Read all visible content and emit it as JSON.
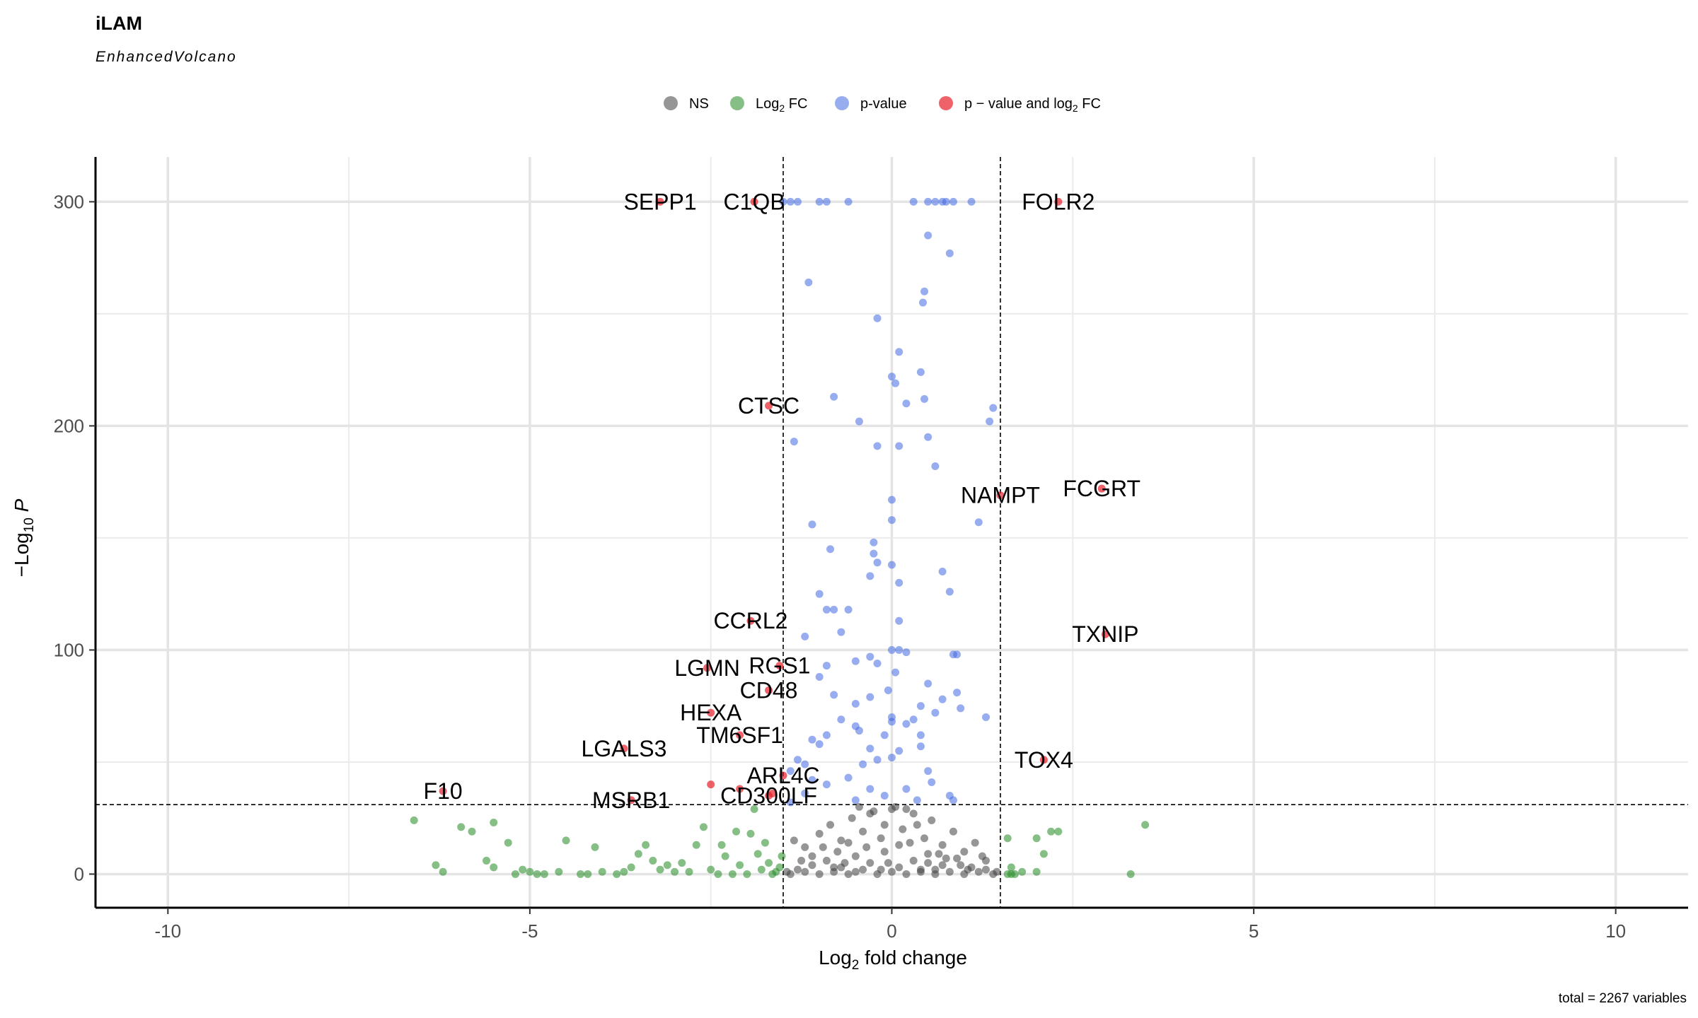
{
  "chart_data": {
    "type": "scatter",
    "title": "iLAM",
    "subtitle": "EnhancedVolcano",
    "xlabel": "Log2 fold change",
    "ylabel": "−Log10 P",
    "caption": "total = 2267 variables",
    "xlim": [
      -11,
      11
    ],
    "ylim": [
      -15,
      320
    ],
    "xticks": [
      -10,
      -5,
      0,
      5,
      10
    ],
    "yticks": [
      0,
      100,
      200,
      300
    ],
    "grid": true,
    "legend_position": "top",
    "thresholds": {
      "log2fc": 1.5,
      "neglog10p": 31
    },
    "colors": {
      "NS": "#404040",
      "Log2FC": "#228b22",
      "pvalue": "#4169e1",
      "both": "#e8202a"
    },
    "legend": [
      {
        "key": "NS",
        "label": "NS"
      },
      {
        "key": "Log2FC",
        "label": "Log",
        "sub": "2",
        "tail": " FC"
      },
      {
        "key": "pvalue",
        "label": "p-value"
      },
      {
        "key": "both",
        "label": "p − value and log",
        "sub": "2",
        "tail": " FC"
      }
    ],
    "labeled_genes": [
      {
        "gene": "SEPP1",
        "x": -3.2,
        "y": 300
      },
      {
        "gene": "C1QB",
        "x": -1.9,
        "y": 300
      },
      {
        "gene": "FOLR2",
        "x": 2.3,
        "y": 300
      },
      {
        "gene": "CTSC",
        "x": -1.7,
        "y": 209
      },
      {
        "gene": "NAMPT",
        "x": 1.5,
        "y": 169
      },
      {
        "gene": "FCGRT",
        "x": 2.9,
        "y": 172
      },
      {
        "gene": "CCRL2",
        "x": -1.95,
        "y": 113
      },
      {
        "gene": "TXNIP",
        "x": 2.95,
        "y": 107
      },
      {
        "gene": "LGMN",
        "x": -2.55,
        "y": 92
      },
      {
        "gene": "RGS1",
        "x": -1.55,
        "y": 93
      },
      {
        "gene": "CD48",
        "x": -1.7,
        "y": 82
      },
      {
        "gene": "HEXA",
        "x": -2.5,
        "y": 72
      },
      {
        "gene": "TM6SF1",
        "x": -2.1,
        "y": 62
      },
      {
        "gene": "LGALS3",
        "x": -3.7,
        "y": 56
      },
      {
        "gene": "TOX4",
        "x": 2.1,
        "y": 51
      },
      {
        "gene": "ARL4C",
        "x": -1.5,
        "y": 44
      },
      {
        "gene": "F10",
        "x": -6.2,
        "y": 37
      },
      {
        "gene": "CD300LF",
        "x": -1.7,
        "y": 35
      },
      {
        "gene": "MSRB1",
        "x": -3.6,
        "y": 33
      }
    ],
    "extra_red_points": [
      {
        "x": -2.5,
        "y": 40
      },
      {
        "x": -2.1,
        "y": 38
      },
      {
        "x": -1.65,
        "y": 36
      }
    ],
    "blue_points": [
      [
        -1.5,
        300
      ],
      [
        -1.4,
        300
      ],
      [
        -1.3,
        300
      ],
      [
        -1.0,
        300
      ],
      [
        -0.9,
        300
      ],
      [
        -0.6,
        300
      ],
      [
        0.3,
        300
      ],
      [
        0.5,
        300
      ],
      [
        0.6,
        300
      ],
      [
        0.7,
        300
      ],
      [
        0.75,
        300
      ],
      [
        0.85,
        300
      ],
      [
        1.1,
        300
      ],
      [
        0.5,
        285
      ],
      [
        0.8,
        277
      ],
      [
        -1.15,
        264
      ],
      [
        0.45,
        260
      ],
      [
        0.43,
        255
      ],
      [
        -0.2,
        248
      ],
      [
        0.1,
        233
      ],
      [
        0.0,
        222
      ],
      [
        0.05,
        219
      ],
      [
        0.4,
        224
      ],
      [
        -0.8,
        213
      ],
      [
        0.45,
        212
      ],
      [
        1.4,
        208
      ],
      [
        1.35,
        202
      ],
      [
        -0.45,
        202
      ],
      [
        0.2,
        210
      ],
      [
        -1.35,
        193
      ],
      [
        -0.2,
        191
      ],
      [
        0.1,
        191
      ],
      [
        0.5,
        195
      ],
      [
        0.6,
        182
      ],
      [
        0.0,
        167
      ],
      [
        0.0,
        158
      ],
      [
        1.2,
        157
      ],
      [
        -1.1,
        156
      ],
      [
        -0.25,
        148
      ],
      [
        -0.25,
        143
      ],
      [
        -0.2,
        139
      ],
      [
        -0.85,
        145
      ],
      [
        0.0,
        138
      ],
      [
        -0.3,
        133
      ],
      [
        0.1,
        130
      ],
      [
        0.7,
        135
      ],
      [
        0.8,
        126
      ],
      [
        -1.0,
        125
      ],
      [
        -0.9,
        118
      ],
      [
        -0.8,
        118
      ],
      [
        -0.6,
        118
      ],
      [
        0.1,
        113
      ],
      [
        -0.7,
        108
      ],
      [
        -1.2,
        106
      ],
      [
        0.9,
        98
      ],
      [
        0.85,
        98
      ],
      [
        0.0,
        100
      ],
      [
        0.1,
        100
      ],
      [
        0.2,
        99
      ],
      [
        -0.3,
        97
      ],
      [
        0.05,
        90
      ],
      [
        -1.0,
        88
      ],
      [
        -0.9,
        93
      ],
      [
        -0.5,
        95
      ],
      [
        -0.2,
        94
      ],
      [
        -0.05,
        82
      ],
      [
        0.5,
        85
      ],
      [
        0.9,
        81
      ],
      [
        0.95,
        74
      ],
      [
        0.7,
        78
      ],
      [
        0.6,
        72
      ],
      [
        0.4,
        75
      ],
      [
        0.3,
        69
      ],
      [
        0.0,
        70
      ],
      [
        1.3,
        70
      ],
      [
        -0.3,
        79
      ],
      [
        -0.5,
        76
      ],
      [
        -0.8,
        80
      ],
      [
        -0.7,
        69
      ],
      [
        -0.45,
        64
      ],
      [
        -0.1,
        62
      ],
      [
        0.0,
        68
      ],
      [
        0.2,
        67
      ],
      [
        0.4,
        62
      ],
      [
        -0.9,
        62
      ],
      [
        -1.1,
        60
      ],
      [
        -1.0,
        58
      ],
      [
        -0.5,
        66
      ],
      [
        -0.3,
        56
      ],
      [
        0.1,
        55
      ],
      [
        -0.4,
        49
      ],
      [
        -0.2,
        51
      ],
      [
        0.0,
        52
      ],
      [
        0.4,
        57
      ],
      [
        0.5,
        46
      ],
      [
        0.55,
        41
      ],
      [
        0.8,
        35
      ],
      [
        0.85,
        33
      ],
      [
        -1.3,
        51
      ],
      [
        -1.2,
        49
      ],
      [
        -1.4,
        46
      ],
      [
        -1.1,
        42
      ],
      [
        -0.9,
        40
      ],
      [
        -0.6,
        43
      ],
      [
        -0.3,
        38
      ],
      [
        -0.1,
        35
      ],
      [
        0.2,
        38
      ],
      [
        0.35,
        33
      ],
      [
        -0.5,
        33
      ],
      [
        -1.4,
        32
      ],
      [
        -1.2,
        36
      ]
    ],
    "green_points": [
      [
        -6.6,
        24
      ],
      [
        -6.3,
        4
      ],
      [
        -6.2,
        1
      ],
      [
        -5.95,
        21
      ],
      [
        -5.8,
        19
      ],
      [
        -5.5,
        23
      ],
      [
        -5.6,
        6
      ],
      [
        -5.5,
        3
      ],
      [
        -5.3,
        14
      ],
      [
        -5.1,
        2
      ],
      [
        -5.0,
        1
      ],
      [
        -4.9,
        0
      ],
      [
        -4.6,
        1
      ],
      [
        -4.5,
        15
      ],
      [
        -4.3,
        0
      ],
      [
        -4.2,
        0
      ],
      [
        -4.0,
        1
      ],
      [
        -4.1,
        12
      ],
      [
        -3.8,
        0
      ],
      [
        -3.6,
        3
      ],
      [
        -3.5,
        9
      ],
      [
        -3.4,
        13
      ],
      [
        -3.3,
        6
      ],
      [
        -3.1,
        4
      ],
      [
        -3.0,
        1
      ],
      [
        -2.8,
        1
      ],
      [
        -2.7,
        13
      ],
      [
        -2.6,
        21
      ],
      [
        -2.5,
        2
      ],
      [
        -2.4,
        0
      ],
      [
        -2.3,
        8
      ],
      [
        -2.2,
        0
      ],
      [
        -2.1,
        4
      ],
      [
        -2.0,
        0
      ],
      [
        -1.95,
        18
      ],
      [
        -1.9,
        29
      ],
      [
        -1.85,
        9
      ],
      [
        -1.8,
        2
      ],
      [
        -1.75,
        14
      ],
      [
        -1.7,
        5
      ],
      [
        -1.65,
        0
      ],
      [
        -1.6,
        1
      ],
      [
        -1.55,
        3
      ],
      [
        -1.52,
        8
      ],
      [
        -2.9,
        5
      ],
      [
        -3.2,
        2
      ],
      [
        -3.7,
        1
      ],
      [
        -4.8,
        0
      ],
      [
        -5.2,
        0
      ],
      [
        -2.35,
        13
      ],
      [
        -2.15,
        19
      ],
      [
        1.6,
        0
      ],
      [
        1.65,
        0
      ],
      [
        1.7,
        0
      ],
      [
        1.8,
        1
      ],
      [
        1.65,
        3
      ],
      [
        2.0,
        1
      ],
      [
        2.0,
        16
      ],
      [
        2.1,
        9
      ],
      [
        2.2,
        19
      ],
      [
        2.3,
        19
      ],
      [
        1.6,
        16
      ],
      [
        3.3,
        0
      ],
      [
        3.5,
        22
      ]
    ],
    "gray_points": [
      [
        -1.4,
        0
      ],
      [
        -1.3,
        2
      ],
      [
        -1.2,
        1
      ],
      [
        -1.1,
        4
      ],
      [
        -1.0,
        0
      ],
      [
        -0.9,
        6
      ],
      [
        -0.8,
        1
      ],
      [
        -0.7,
        3
      ],
      [
        -0.6,
        0
      ],
      [
        -0.5,
        8
      ],
      [
        -0.4,
        2
      ],
      [
        -0.3,
        5
      ],
      [
        -0.2,
        0
      ],
      [
        -0.1,
        10
      ],
      [
        0.0,
        1
      ],
      [
        0.1,
        3
      ],
      [
        0.2,
        0
      ],
      [
        0.3,
        6
      ],
      [
        0.4,
        2
      ],
      [
        0.5,
        9
      ],
      [
        0.6,
        0
      ],
      [
        0.7,
        4
      ],
      [
        0.8,
        1
      ],
      [
        0.9,
        7
      ],
      [
        1.0,
        0
      ],
      [
        1.1,
        3
      ],
      [
        1.2,
        1
      ],
      [
        1.3,
        2
      ],
      [
        1.4,
        0
      ],
      [
        -1.35,
        15
      ],
      [
        -1.2,
        12
      ],
      [
        -1.0,
        18
      ],
      [
        -0.85,
        22
      ],
      [
        -0.7,
        15
      ],
      [
        -0.55,
        25
      ],
      [
        -0.4,
        19
      ],
      [
        -0.25,
        28
      ],
      [
        -0.1,
        22
      ],
      [
        0.05,
        30
      ],
      [
        0.15,
        20
      ],
      [
        0.3,
        27
      ],
      [
        0.45,
        16
      ],
      [
        0.55,
        24
      ],
      [
        0.7,
        13
      ],
      [
        0.85,
        19
      ],
      [
        1.0,
        10
      ],
      [
        1.15,
        14
      ],
      [
        1.25,
        8
      ],
      [
        -0.95,
        12
      ],
      [
        -0.6,
        14
      ],
      [
        -0.15,
        16
      ],
      [
        0.25,
        14
      ],
      [
        0.65,
        9
      ],
      [
        -1.1,
        8
      ],
      [
        -0.75,
        10
      ],
      [
        -0.35,
        12
      ],
      [
        0.1,
        13
      ],
      [
        0.5,
        5
      ],
      [
        0.95,
        4
      ],
      [
        1.3,
        6
      ],
      [
        -1.25,
        6
      ],
      [
        -0.45,
        30
      ],
      [
        0.0,
        29
      ],
      [
        -0.3,
        27
      ],
      [
        0.2,
        29
      ],
      [
        0.35,
        22
      ],
      [
        -0.05,
        5
      ],
      [
        -0.65,
        5
      ],
      [
        0.75,
        7
      ],
      [
        -1.45,
        1
      ],
      [
        1.45,
        1
      ],
      [
        -0.15,
        2
      ],
      [
        0.4,
        1
      ],
      [
        -0.5,
        1
      ],
      [
        0.6,
        2
      ],
      [
        -0.8,
        3
      ],
      [
        1.05,
        2
      ]
    ]
  }
}
